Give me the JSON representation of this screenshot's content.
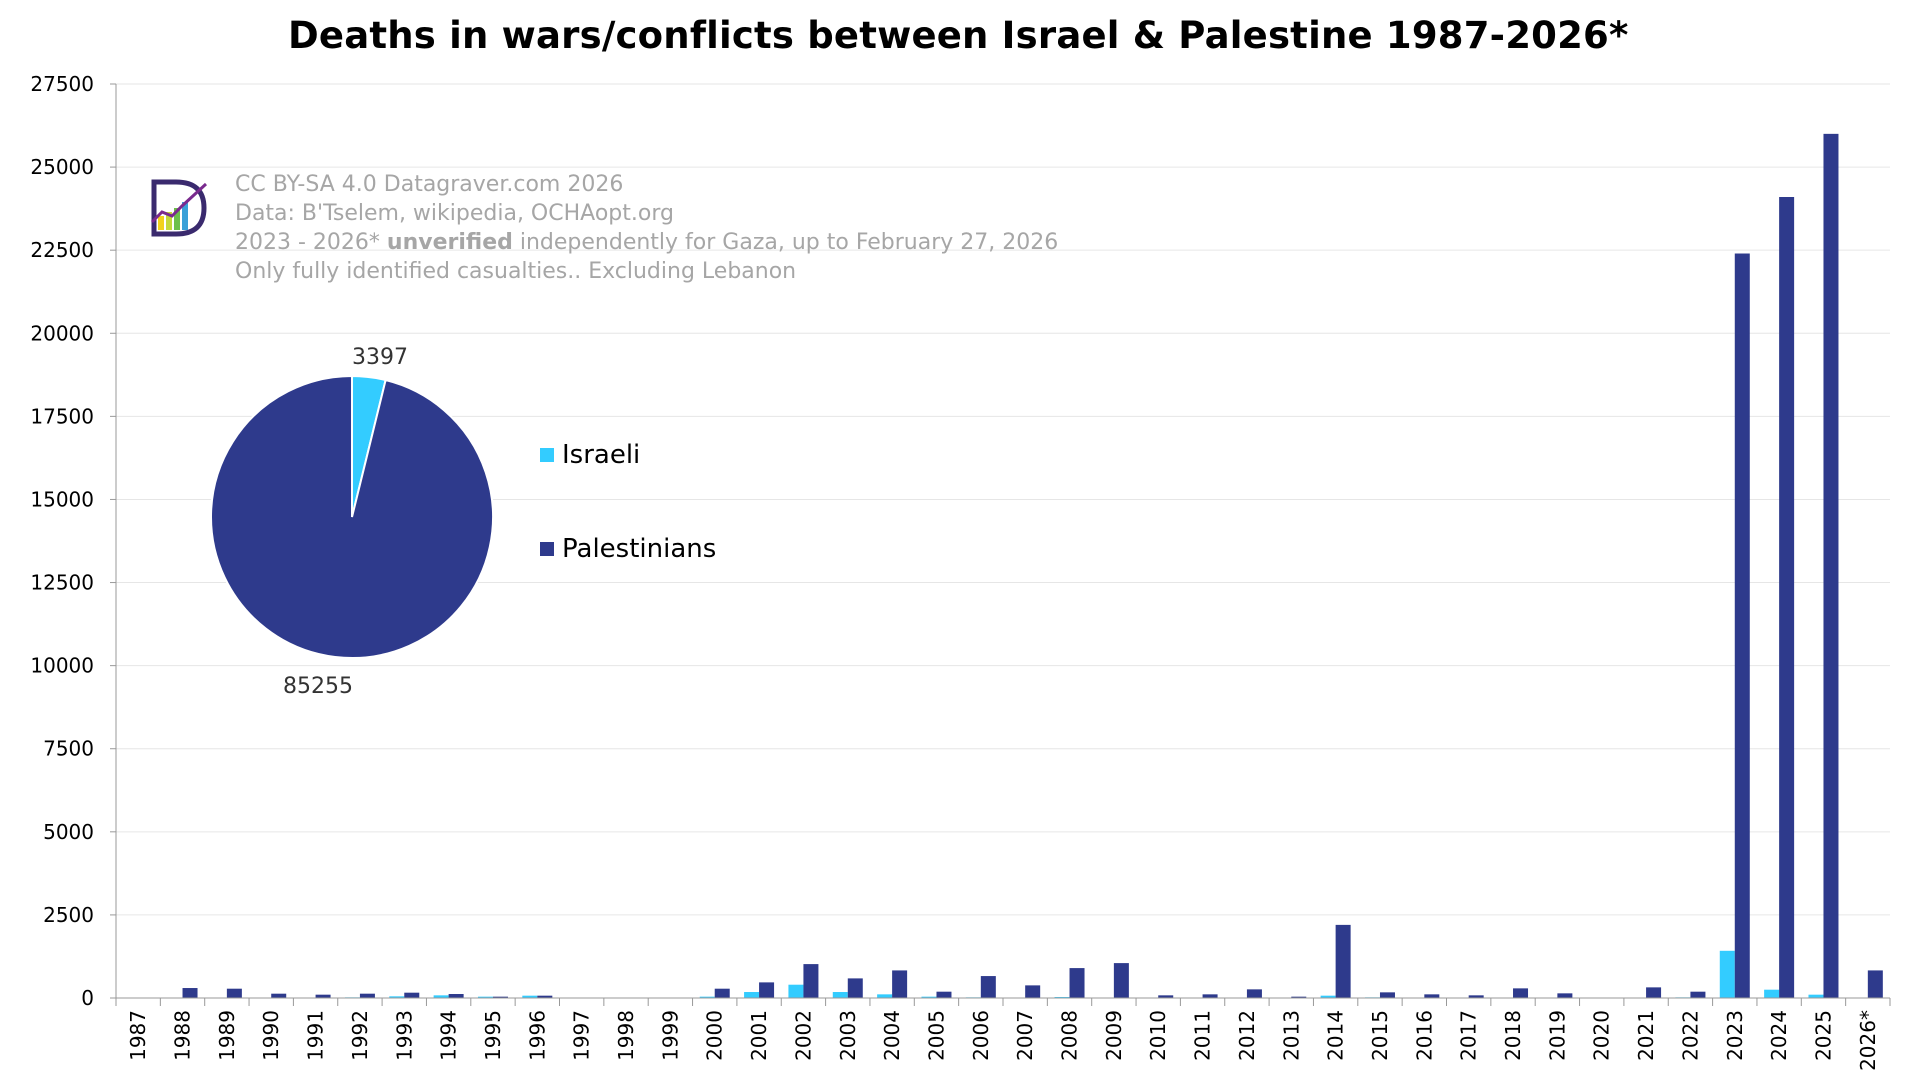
{
  "title": "Deaths in wars/conflicts between Israel & Palestine 1987-2026*",
  "credits": {
    "line1": "CC BY-SA 4.0 Datagraver.com 2026",
    "line2": "Data: B'Tselem, wikipedia, OCHAopt.org",
    "line3_pre": "2023 - 2026* ",
    "line3_bold": "unverified",
    "line3_post": " independently for Gaza, up to February 27, 2026",
    "line4": "Only fully identified casualties.. Excluding Lebanon"
  },
  "colors": {
    "israeli": "#33ccff",
    "palestinians": "#2e3a8c"
  },
  "chart_data": [
    {
      "type": "bar",
      "title": "Deaths in wars/conflicts between Israel & Palestine 1987-2026*",
      "ylim": [
        0,
        27500
      ],
      "yticks": [
        0,
        2500,
        5000,
        7500,
        10000,
        12500,
        15000,
        17500,
        20000,
        22500,
        25000,
        27500
      ],
      "grid": true,
      "categories": [
        "1987",
        "1988",
        "1989",
        "1990",
        "1991",
        "1992",
        "1993",
        "1994",
        "1995",
        "1996",
        "1997",
        "1998",
        "1999",
        "2000",
        "2001",
        "2002",
        "2003",
        "2004",
        "2005",
        "2006",
        "2007",
        "2008",
        "2009",
        "2010",
        "2011",
        "2012",
        "2013",
        "2014",
        "2015",
        "2016",
        "2017",
        "2018",
        "2019",
        "2020",
        "2021",
        "2022",
        "2023",
        "2024",
        "2025",
        "2026*"
      ],
      "series": [
        {
          "name": "Israeli",
          "values": [
            0,
            15,
            10,
            5,
            5,
            20,
            50,
            80,
            40,
            70,
            0,
            0,
            0,
            40,
            180,
            400,
            180,
            110,
            40,
            20,
            10,
            30,
            10,
            5,
            10,
            10,
            5,
            70,
            20,
            10,
            10,
            10,
            10,
            5,
            10,
            20,
            1420,
            250,
            100,
            5
          ]
        },
        {
          "name": "Palestinians",
          "values": [
            0,
            300,
            280,
            130,
            100,
            130,
            160,
            120,
            40,
            70,
            0,
            0,
            0,
            280,
            470,
            1020,
            590,
            830,
            190,
            660,
            380,
            900,
            1050,
            80,
            110,
            260,
            40,
            2200,
            170,
            110,
            80,
            290,
            140,
            0,
            320,
            190,
            22400,
            24100,
            26000,
            830
          ]
        }
      ]
    },
    {
      "type": "pie",
      "labels": [
        "Israeli",
        "Palestinians"
      ],
      "values": [
        3397,
        85255
      ],
      "data_labels": [
        "3397",
        "85255"
      ],
      "legend": "right"
    }
  ]
}
